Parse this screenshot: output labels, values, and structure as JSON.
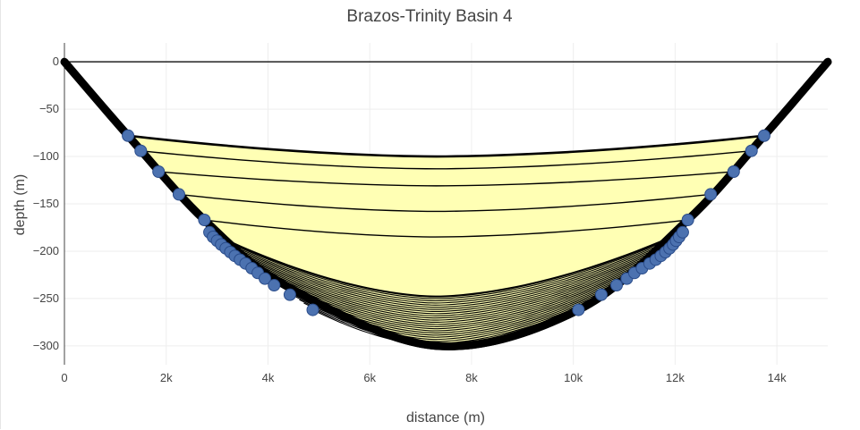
{
  "chart_data": {
    "type": "line",
    "title": "Brazos-Trinity Basin 4",
    "xlabel": "distance (m)",
    "ylabel": "depth (m)",
    "xlim": [
      0,
      15000
    ],
    "ylim": [
      -320,
      20
    ],
    "grid": true,
    "legend": "none",
    "x_ticks": [
      0,
      2000,
      4000,
      6000,
      8000,
      10000,
      12000,
      14000
    ],
    "x_tick_labels": [
      "0",
      "2k",
      "4k",
      "6k",
      "8k",
      "10k",
      "12k",
      "14k"
    ],
    "y_ticks": [
      0,
      -50,
      -100,
      -150,
      -200,
      -250,
      -300
    ],
    "y_tick_labels": [
      "0",
      "−50",
      "−100",
      "−150",
      "−200",
      "−250",
      "−300"
    ],
    "colors": {
      "fill": "#ffffb4",
      "line": "#000000",
      "marker": "#4c72b0",
      "marker_edge": "#2a4c8a",
      "grid": "#eeeeee",
      "zeroline": "#444444"
    },
    "basin_floor": {
      "x": [
        0,
        1250,
        2750,
        4400,
        7300,
        10100,
        12250,
        13750,
        15000
      ],
      "y": [
        0,
        -78,
        -167,
        -238,
        -300,
        -262,
        -167,
        -78,
        0
      ]
    },
    "lower_surfaces": {
      "count": 24,
      "x_left_start": 2850,
      "x_left_end": 4880,
      "x_right_start": 12150,
      "x_right_end": 10100,
      "y_start": -180,
      "y_end": -262,
      "sag_start": 68,
      "sag_end": 38,
      "x_min": 7300
    },
    "upper_surfaces": {
      "x_left": [
        1250,
        1500,
        1850,
        2250,
        2750
      ],
      "x_right": [
        13750,
        13500,
        13150,
        12700,
        12250
      ],
      "y": [
        -78,
        -94,
        -116,
        -140,
        -167
      ],
      "y_min": [
        -100,
        -113,
        -131,
        -158,
        -185
      ],
      "x_min": 7300
    },
    "markers": {
      "x": [
        1250,
        1500,
        1850,
        2250,
        2750,
        2850,
        2920,
        3000,
        3080,
        3170,
        3260,
        3350,
        3450,
        3560,
        3680,
        3800,
        3940,
        4120,
        4430,
        4880,
        10100,
        10550,
        10850,
        11050,
        11200,
        11350,
        11500,
        11620,
        11720,
        11810,
        11890,
        11960,
        12020,
        12080,
        12150,
        12250,
        12700,
        13150,
        13500,
        13750
      ],
      "y": [
        -78,
        -94,
        -116,
        -140,
        -167,
        -180,
        -185,
        -189,
        -193,
        -197,
        -201,
        -205,
        -209,
        -213,
        -218,
        -223,
        -229,
        -236,
        -246,
        -262,
        -262,
        -246,
        -236,
        -229,
        -223,
        -218,
        -213,
        -209,
        -205,
        -201,
        -197,
        -193,
        -189,
        -185,
        -180,
        -167,
        -140,
        -116,
        -94,
        -78
      ]
    }
  }
}
